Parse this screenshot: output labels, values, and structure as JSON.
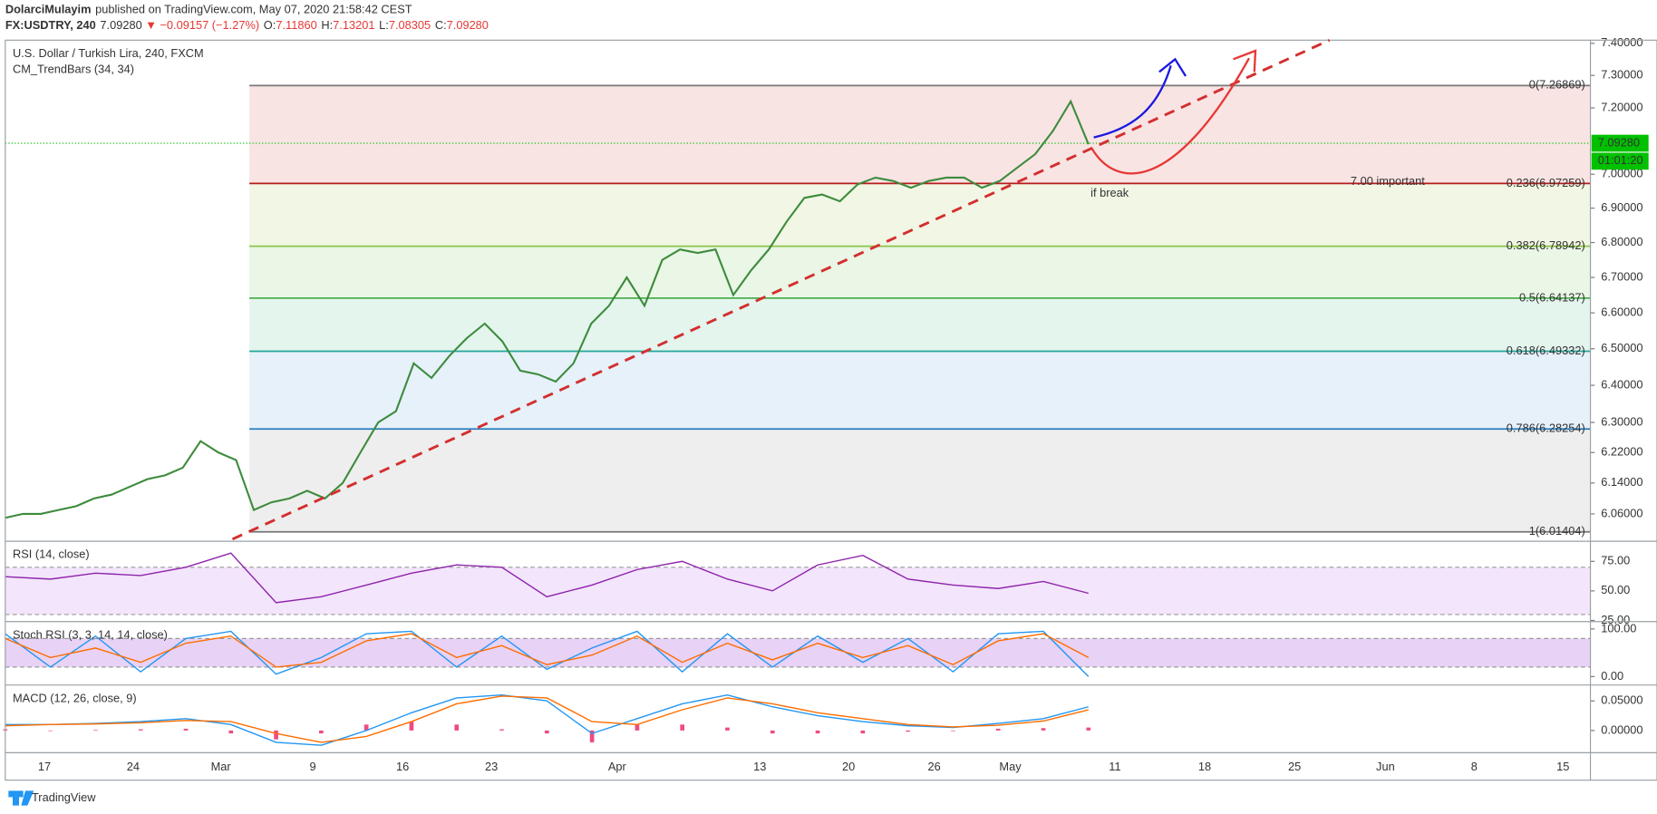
{
  "header": {
    "author": "DolarciMulayim",
    "published": "published on TradingView.com, May 07, 2020 21:58:42 CEST",
    "symbol": "FX:USDTRY, 240",
    "last": "7.09280",
    "change": "▼ −0.09157 (−1.27%)",
    "ohlc": [
      [
        "O:",
        "7.11860"
      ],
      [
        "H:",
        "7.13201"
      ],
      [
        "L:",
        "7.08305"
      ],
      [
        "C:",
        "7.09280"
      ]
    ]
  },
  "chart_data": [
    {
      "type": "line",
      "title": "U.S. Dollar / Turkish Lira, 240, FXCM",
      "subtitle": "CM_TrendBars (34, 34)",
      "log": true,
      "ylim": [
        5.99,
        7.41
      ],
      "yticks": [
        {
          "value": 7.4,
          "label": "7.40000"
        },
        {
          "value": 7.3,
          "label": "7.30000"
        },
        {
          "value": 7.2,
          "label": "7.20000"
        },
        {
          "value": 7.0,
          "label": "7.00000"
        },
        {
          "value": 6.9,
          "label": "6.90000"
        },
        {
          "value": 6.8,
          "label": "6.80000"
        },
        {
          "value": 6.7,
          "label": "6.70000"
        },
        {
          "value": 6.6,
          "label": "6.60000"
        },
        {
          "value": 6.5,
          "label": "6.50000"
        },
        {
          "value": 6.4,
          "label": "6.40000"
        },
        {
          "value": 6.3,
          "label": "6.30000"
        },
        {
          "value": 6.22,
          "label": "6.22000"
        },
        {
          "value": 6.14,
          "label": "6.14000"
        },
        {
          "value": 6.06,
          "label": "6.06000"
        }
      ],
      "series": [
        {
          "color": "#3d8b3d",
          "values": [
            6.05,
            6.06,
            6.06,
            6.07,
            6.08,
            6.1,
            6.11,
            6.13,
            6.15,
            6.16,
            6.18,
            6.25,
            6.22,
            6.2,
            6.07,
            6.09,
            6.1,
            6.12,
            6.1,
            6.14,
            6.22,
            6.3,
            6.33,
            6.46,
            6.42,
            6.48,
            6.53,
            6.57,
            6.52,
            6.44,
            6.43,
            6.41,
            6.46,
            6.57,
            6.62,
            6.7,
            6.62,
            6.75,
            6.78,
            6.77,
            6.78,
            6.65,
            6.72,
            6.78,
            6.86,
            6.93,
            6.94,
            6.92,
            6.97,
            6.99,
            6.98,
            6.96,
            6.98,
            6.99,
            6.99,
            6.96,
            6.98,
            7.02,
            7.06,
            7.13,
            7.22,
            7.09
          ]
        }
      ],
      "fib_levels": [
        {
          "label": "0(7.26869)",
          "value": 7.26869,
          "color": "#787878"
        },
        {
          "label": "0.236(6.97259)",
          "value": 6.97259,
          "color": "#b71c1c"
        },
        {
          "label": "0.382(6.78942)",
          "value": 6.78942,
          "color": "#8bc34a"
        },
        {
          "label": "0.5(6.64137)",
          "value": 6.64137,
          "color": "#4caf50"
        },
        {
          "label": "0.618(6.49332)",
          "value": 6.49332,
          "color": "#26a69a"
        },
        {
          "label": "0.786(6.28254)",
          "value": 6.28254,
          "color": "#2a7fbf"
        },
        {
          "label": "1(6.01404)",
          "value": 6.01404,
          "color": "#787878"
        }
      ],
      "fib_fills": [
        "#f9e4e4",
        "#f1f7e4",
        "#eaf6e6",
        "#e4f5ee",
        "#e6f1fa",
        "#eeeeee"
      ],
      "last_price": {
        "value": 7.0928,
        "label": "7.09280"
      },
      "countdown": "01:01:20",
      "price_color": "#00c000",
      "annotations": [
        {
          "text": "7.00 important",
          "color": "#e53935"
        },
        {
          "text": "if break",
          "color": "#e53935"
        }
      ]
    },
    {
      "type": "line",
      "title": "RSI (14, close)",
      "ylim": [
        24,
        92
      ],
      "yticks": [
        {
          "value": 75,
          "label": "75.00"
        },
        {
          "value": 50,
          "label": "50.00"
        },
        {
          "value": 25,
          "label": "25.00"
        }
      ],
      "bands": [
        70,
        30
      ],
      "band_fill": "#f3e5fb",
      "series": [
        {
          "color": "#8e24aa",
          "values": [
            62,
            60,
            65,
            63,
            70,
            82,
            40,
            45,
            55,
            65,
            72,
            70,
            45,
            55,
            68,
            75,
            60,
            50,
            72,
            80,
            60,
            55,
            52,
            58,
            48
          ]
        }
      ]
    },
    {
      "type": "line",
      "title": "Stoch RSI (3, 3, 14, 14, close)",
      "ylim": [
        -17.8,
        115.5
      ],
      "yticks": [
        {
          "value": 100,
          "label": "100.00"
        },
        {
          "value": 0,
          "label": "0.00"
        }
      ],
      "bands": [
        80,
        20
      ],
      "band_fill": "#e8d2f5",
      "series": [
        {
          "color": "#2196f3",
          "values": [
            90,
            20,
            85,
            10,
            80,
            95,
            5,
            40,
            90,
            95,
            20,
            85,
            15,
            60,
            95,
            10,
            90,
            20,
            85,
            30,
            80,
            10,
            90,
            95,
            0
          ]
        },
        {
          "color": "#ff6d00",
          "values": [
            80,
            40,
            60,
            30,
            70,
            85,
            20,
            30,
            75,
            90,
            40,
            65,
            25,
            45,
            85,
            30,
            70,
            35,
            70,
            40,
            65,
            25,
            75,
            90,
            40
          ]
        }
      ]
    },
    {
      "type": "line",
      "title": "MACD (12, 26, close, 9)",
      "ylim": [
        -0.0375,
        0.0768
      ],
      "yticks": [
        {
          "value": 0.05,
          "label": "0.05000"
        },
        {
          "value": 0,
          "label": "0.00000"
        }
      ],
      "series": [
        {
          "color": "#e91e63",
          "style": "bar",
          "values": [
            0.002,
            0,
            0.001,
            0.002,
            0.003,
            -0.005,
            -0.015,
            -0.005,
            0.01,
            0.015,
            0.01,
            0.002,
            -0.005,
            -0.02,
            0.01,
            0.01,
            0.005,
            -0.005,
            -0.005,
            -0.005,
            -0.002,
            -0.001,
            0.003,
            0.004,
            0.005
          ]
        },
        {
          "color": "#2196f3",
          "values": [
            0.01,
            0.01,
            0.012,
            0.015,
            0.02,
            0.01,
            -0.02,
            -0.025,
            0.0,
            0.03,
            0.055,
            0.06,
            0.05,
            -0.005,
            0.02,
            0.045,
            0.06,
            0.04,
            0.025,
            0.015,
            0.008,
            0.005,
            0.012,
            0.02,
            0.04
          ]
        },
        {
          "color": "#ff6d00",
          "values": [
            0.008,
            0.01,
            0.011,
            0.013,
            0.017,
            0.015,
            -0.005,
            -0.02,
            -0.01,
            0.015,
            0.045,
            0.058,
            0.055,
            0.015,
            0.01,
            0.035,
            0.055,
            0.045,
            0.03,
            0.02,
            0.01,
            0.006,
            0.009,
            0.016,
            0.035
          ]
        }
      ]
    }
  ],
  "time_axis": [
    "17",
    "24",
    "Mar",
    "9",
    "16",
    "23",
    "Apr",
    "13",
    "20",
    "26",
    "May",
    "11",
    "18",
    "25",
    "Jun",
    "8",
    "15"
  ],
  "footer": "TradingView"
}
